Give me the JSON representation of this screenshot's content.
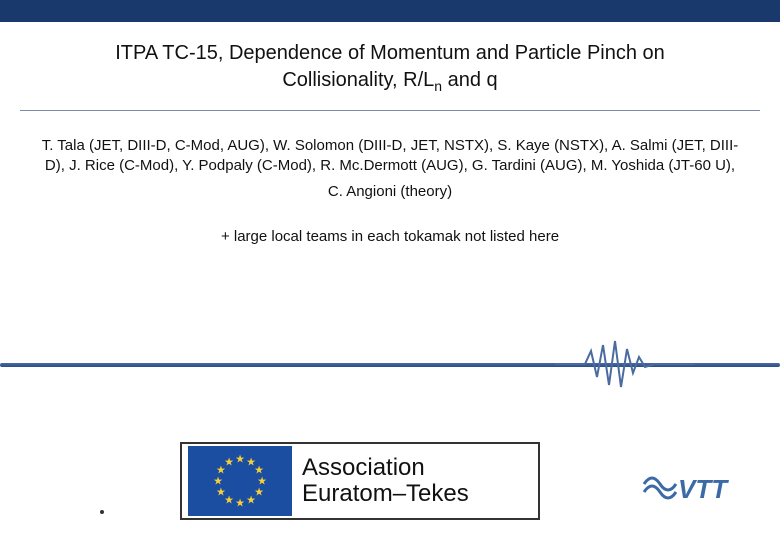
{
  "colors": {
    "topbar": "#19386b",
    "divider": "#2b4d86",
    "pulse": "#4a6aa0",
    "eu_flag_bg": "#1b4ea1",
    "eu_star": "#f7d038",
    "vtt": "#3c6aa6",
    "text": "#111111",
    "border": "#333333"
  },
  "title": {
    "line1": "ITPA TC-15, Dependence of Momentum and Particle Pinch on",
    "line2_pre": "Collisionality, R/L",
    "line2_sub": "n",
    "line2_post": " and q"
  },
  "authors": "T. Tala (JET, DIII-D, C-Mod, AUG), W. Solomon (DIII-D, JET, NSTX), S. Kaye (NSTX), A. Salmi (JET, DIII-D), J. Rice (C-Mod), Y. Podpaly (C-Mod), R. Mc.Dermott (AUG), G. Tardini (AUG), M. Yoshida (JT-60 U),",
  "theory_author": "C. Angioni (theory)",
  "teams_note": "+ large local teams in each tokamak not listed here",
  "assoc": {
    "line1": "Association",
    "line2": "Euratom–Tekes"
  },
  "vtt_label": "VTT"
}
